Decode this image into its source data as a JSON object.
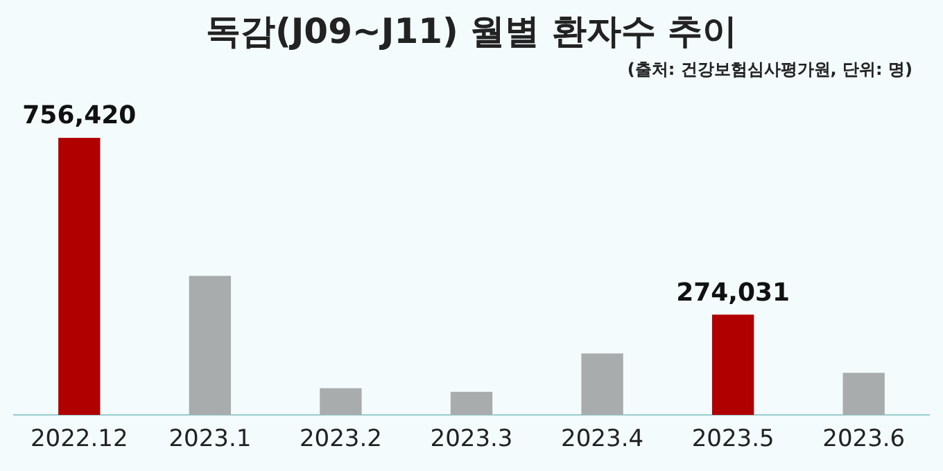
{
  "chart_data": {
    "type": "bar",
    "title": "독감(J09~J11) 월별 환자수 추이",
    "subtitle": "(출처: 건강보험심사평가원, 단위: 명)",
    "categories": [
      "2022.12",
      "2023.1",
      "2023.2",
      "2023.3",
      "2023.4",
      "2023.5",
      "2023.6"
    ],
    "values": [
      756420,
      380000,
      73000,
      63000,
      168000,
      274031,
      115000
    ],
    "colors": [
      "#b00000",
      "#a9acad",
      "#a9acad",
      "#a9acad",
      "#a9acad",
      "#b00000",
      "#a9acad"
    ],
    "value_labels": [
      "756,420",
      null,
      null,
      null,
      null,
      "274,031",
      null
    ],
    "grid": false,
    "legend": false
  }
}
